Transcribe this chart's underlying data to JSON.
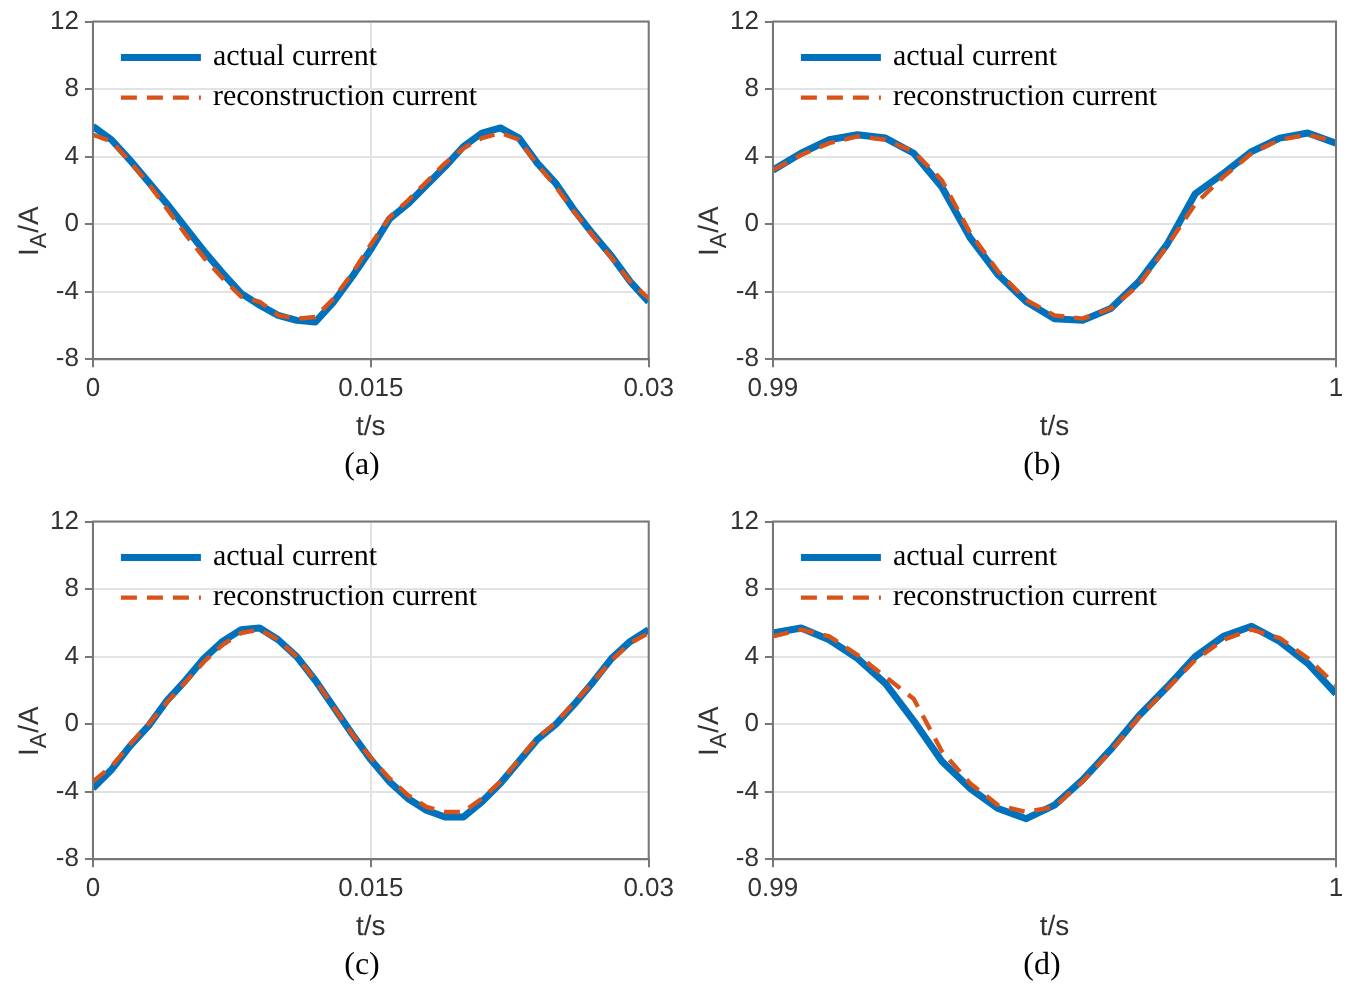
{
  "chart_data": [
    {
      "type": "line",
      "xlabel": "t/s",
      "ylabel": "I$_{A}$/A",
      "annotations": [
        "(a)"
      ],
      "xlim": [
        0,
        0.03
      ],
      "xticks": [
        0,
        0.015,
        0.03
      ],
      "ylim": [
        -8,
        12
      ],
      "yticks": [
        -8,
        -4,
        0,
        4,
        8,
        12
      ],
      "grid": true,
      "legend": "top left",
      "x": [
        0,
        0.001,
        0.002,
        0.003,
        0.004,
        0.005,
        0.006,
        0.007,
        0.008,
        0.009,
        0.01,
        0.011,
        0.012,
        0.013,
        0.014,
        0.015,
        0.016,
        0.017,
        0.018,
        0.019,
        0.02,
        0.021,
        0.022,
        0.023,
        0.024,
        0.025,
        0.026,
        0.027,
        0.028,
        0.029,
        0.03
      ],
      "series": [
        {
          "name": "actual current",
          "color": "#0072bd",
          "line_style": "solid",
          "values": [
            5.8,
            5.0,
            3.8,
            2.5,
            1.2,
            -0.2,
            -1.6,
            -2.9,
            -4.1,
            -4.8,
            -5.4,
            -5.7,
            -5.8,
            -4.6,
            -3.1,
            -1.5,
            0.3,
            1.2,
            2.3,
            3.4,
            4.6,
            5.4,
            5.7,
            5.1,
            3.6,
            2.4,
            0.8,
            -0.6,
            -1.9,
            -3.4,
            -4.6
          ]
        },
        {
          "name": "reconstruction current",
          "color": "#d95319",
          "line_style": "dashed",
          "values": [
            5.3,
            4.9,
            3.7,
            2.4,
            0.9,
            -0.6,
            -2.0,
            -3.2,
            -4.3,
            -4.6,
            -5.4,
            -5.6,
            -5.5,
            -4.4,
            -2.9,
            -1.2,
            0.4,
            1.4,
            2.5,
            3.6,
            4.5,
            5.1,
            5.4,
            5.0,
            3.5,
            2.2,
            0.7,
            -0.7,
            -2.0,
            -3.4,
            -4.4
          ]
        }
      ]
    },
    {
      "type": "line",
      "xlabel": "t/s",
      "ylabel": "I$_{A}$/A",
      "annotations": [
        "(b)"
      ],
      "xlim": [
        0.99,
        1
      ],
      "xticks": [
        0.99,
        1
      ],
      "ylim": [
        -8,
        12
      ],
      "yticks": [
        -8,
        -4,
        0,
        4,
        8,
        12
      ],
      "grid": true,
      "legend": "top left",
      "x": [
        0.99,
        0.9905,
        0.991,
        0.9915,
        0.992,
        0.9925,
        0.993,
        0.9935,
        0.994,
        0.9945,
        0.995,
        0.9955,
        0.996,
        0.9965,
        0.997,
        0.9975,
        0.998,
        0.9985,
        0.999,
        0.9995,
        1
      ],
      "series": [
        {
          "name": "actual current",
          "color": "#0072bd",
          "line_style": "solid",
          "values": [
            3.2,
            4.2,
            5.0,
            5.3,
            5.1,
            4.2,
            2.2,
            -0.8,
            -3.0,
            -4.6,
            -5.6,
            -5.7,
            -5.0,
            -3.4,
            -1.2,
            1.8,
            3.0,
            4.3,
            5.1,
            5.4,
            4.8
          ]
        },
        {
          "name": "reconstruction current",
          "color": "#d95319",
          "line_style": "dashed",
          "values": [
            3.2,
            4.1,
            4.8,
            5.2,
            5.0,
            4.3,
            2.6,
            -0.5,
            -2.8,
            -4.5,
            -5.4,
            -5.6,
            -5.0,
            -3.6,
            -1.3,
            1.2,
            2.8,
            4.2,
            5.0,
            5.3,
            4.9
          ]
        }
      ]
    },
    {
      "type": "line",
      "xlabel": "t/s",
      "ylabel": "I$_{A}$/A",
      "annotations": [
        "(c)"
      ],
      "xlim": [
        0,
        0.03
      ],
      "xticks": [
        0,
        0.015,
        0.03
      ],
      "ylim": [
        -8,
        12
      ],
      "yticks": [
        -8,
        -4,
        0,
        4,
        8,
        12
      ],
      "grid": true,
      "legend": "top left",
      "x": [
        0,
        0.001,
        0.002,
        0.003,
        0.004,
        0.005,
        0.006,
        0.007,
        0.008,
        0.009,
        0.01,
        0.011,
        0.012,
        0.013,
        0.014,
        0.015,
        0.016,
        0.017,
        0.018,
        0.019,
        0.02,
        0.021,
        0.022,
        0.023,
        0.024,
        0.025,
        0.026,
        0.027,
        0.028,
        0.029,
        0.03
      ],
      "series": [
        {
          "name": "actual current",
          "color": "#0072bd",
          "line_style": "solid",
          "values": [
            -3.8,
            -2.7,
            -1.3,
            -0.1,
            1.4,
            2.6,
            3.9,
            4.9,
            5.6,
            5.7,
            5.0,
            4.0,
            2.6,
            1.0,
            -0.6,
            -2.1,
            -3.4,
            -4.4,
            -5.1,
            -5.5,
            -5.5,
            -4.6,
            -3.5,
            -2.2,
            -0.9,
            0.0,
            1.2,
            2.5,
            3.9,
            4.9,
            5.6
          ]
        },
        {
          "name": "reconstruction current",
          "color": "#d95319",
          "line_style": "dashed",
          "values": [
            -3.4,
            -2.5,
            -1.2,
            0.0,
            1.3,
            2.5,
            3.7,
            4.7,
            5.4,
            5.6,
            5.0,
            4.0,
            2.6,
            1.0,
            -0.6,
            -2.0,
            -3.2,
            -4.2,
            -4.9,
            -5.2,
            -5.2,
            -4.4,
            -3.4,
            -2.1,
            -0.8,
            0.1,
            1.3,
            2.5,
            3.8,
            4.8,
            5.4
          ]
        }
      ]
    },
    {
      "type": "line",
      "xlabel": "t/s",
      "ylabel": "I$_{A}$/A",
      "annotations": [
        "(d)"
      ],
      "xlim": [
        0.99,
        1
      ],
      "xticks": [
        0.99,
        1
      ],
      "ylim": [
        -8,
        12
      ],
      "yticks": [
        -8,
        -4,
        0,
        4,
        8,
        12
      ],
      "grid": true,
      "legend": "top left",
      "x": [
        0.99,
        0.9905,
        0.991,
        0.9915,
        0.992,
        0.9925,
        0.993,
        0.9935,
        0.994,
        0.9945,
        0.995,
        0.9955,
        0.996,
        0.9965,
        0.997,
        0.9975,
        0.998,
        0.9985,
        0.999,
        0.9995,
        1
      ],
      "series": [
        {
          "name": "actual current",
          "color": "#0072bd",
          "line_style": "solid",
          "values": [
            5.4,
            5.7,
            5.0,
            3.9,
            2.4,
            0.2,
            -2.2,
            -3.8,
            -5.0,
            -5.6,
            -4.8,
            -3.3,
            -1.5,
            0.5,
            2.2,
            4.0,
            5.2,
            5.8,
            4.9,
            3.6,
            1.8
          ]
        },
        {
          "name": "reconstruction current",
          "color": "#d95319",
          "line_style": "dashed",
          "values": [
            5.2,
            5.6,
            5.2,
            4.1,
            2.8,
            1.5,
            -1.6,
            -3.5,
            -4.8,
            -5.2,
            -4.9,
            -3.4,
            -1.6,
            0.4,
            2.1,
            3.8,
            5.0,
            5.6,
            5.1,
            3.9,
            2.3
          ]
        }
      ]
    }
  ]
}
